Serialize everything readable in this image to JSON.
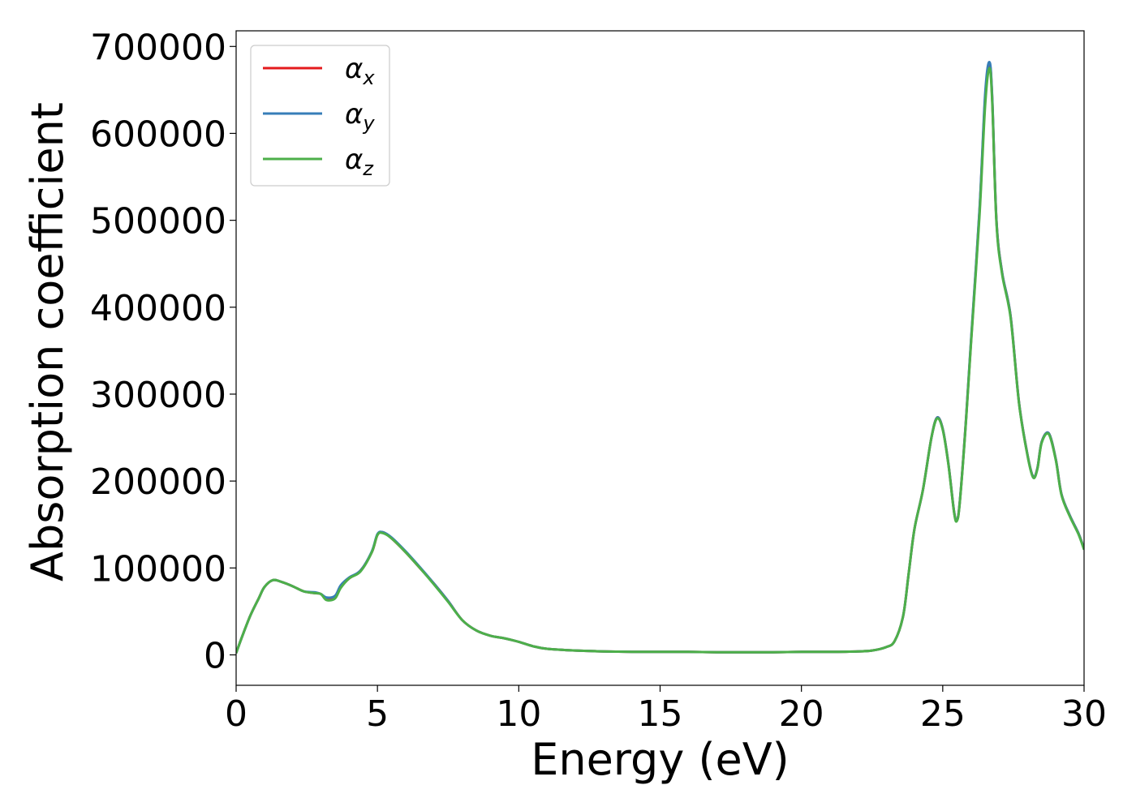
{
  "chart_data": {
    "type": "line",
    "title": "",
    "xlabel": "Energy (eV)",
    "ylabel": "Absorption coefficient",
    "xlim": [
      0,
      30
    ],
    "ylim": [
      -35000,
      718000
    ],
    "xticks": [
      0,
      5,
      10,
      15,
      20,
      25,
      30
    ],
    "yticks": [
      0,
      100000,
      200000,
      300000,
      400000,
      500000,
      600000,
      700000
    ],
    "xtick_labels": [
      "0",
      "5",
      "10",
      "15",
      "20",
      "25",
      "30"
    ],
    "ytick_labels": [
      "0",
      "100000",
      "200000",
      "300000",
      "400000",
      "500000",
      "600000",
      "700000"
    ],
    "grid": false,
    "legend_position": "top-left",
    "series": [
      {
        "name": "α_x",
        "label_main": "α",
        "label_sub": "x",
        "color": "#e41a1c",
        "x": [
          0,
          0.2,
          0.5,
          0.8,
          1.0,
          1.3,
          1.6,
          2.0,
          2.4,
          2.8,
          3.0,
          3.2,
          3.5,
          3.7,
          4.0,
          4.4,
          4.8,
          5.0,
          5.2,
          5.5,
          6.0,
          6.5,
          7.0,
          7.5,
          8.0,
          8.5,
          9.0,
          9.5,
          10.0,
          10.5,
          11.0,
          12.0,
          13.0,
          14.0,
          15.0,
          16.0,
          17.0,
          18.0,
          19.0,
          20.0,
          21.0,
          22.0,
          22.5,
          23.0,
          23.3,
          23.6,
          23.8,
          24.0,
          24.3,
          24.6,
          24.8,
          25.0,
          25.2,
          25.4,
          25.5,
          25.6,
          25.8,
          26.0,
          26.3,
          26.5,
          26.65,
          26.75,
          26.9,
          27.1,
          27.4,
          27.7,
          28.0,
          28.2,
          28.35,
          28.5,
          28.75,
          29.0,
          29.2,
          29.5,
          29.8,
          30.0
        ],
        "values": [
          2000,
          20000,
          45000,
          65000,
          78000,
          86000,
          84000,
          79000,
          73000,
          71000,
          70000,
          64000,
          66000,
          78000,
          88000,
          97000,
          118000,
          138000,
          141000,
          134000,
          118000,
          100000,
          82000,
          62000,
          40000,
          28000,
          22000,
          19000,
          15000,
          10000,
          7000,
          5000,
          4000,
          3500,
          3500,
          3500,
          3000,
          3000,
          3000,
          3500,
          3500,
          4000,
          5000,
          9000,
          16000,
          45000,
          95000,
          145000,
          190000,
          250000,
          273000,
          260000,
          220000,
          165000,
          155000,
          175000,
          260000,
          360000,
          510000,
          640000,
          680000,
          640000,
          500000,
          440000,
          390000,
          290000,
          230000,
          205000,
          215000,
          245000,
          255000,
          225000,
          185000,
          160000,
          140000,
          122000
        ]
      },
      {
        "name": "α_y",
        "label_main": "α",
        "label_sub": "y",
        "color": "#377eb8",
        "x": [
          0,
          0.2,
          0.5,
          0.8,
          1.0,
          1.3,
          1.6,
          2.0,
          2.4,
          2.8,
          3.0,
          3.2,
          3.5,
          3.7,
          4.0,
          4.4,
          4.8,
          5.0,
          5.2,
          5.5,
          6.0,
          6.5,
          7.0,
          7.5,
          8.0,
          8.5,
          9.0,
          9.5,
          10.0,
          10.5,
          11.0,
          12.0,
          13.0,
          14.0,
          15.0,
          16.0,
          17.0,
          18.0,
          19.0,
          20.0,
          21.0,
          22.0,
          22.5,
          23.0,
          23.3,
          23.6,
          23.8,
          24.0,
          24.3,
          24.6,
          24.8,
          25.0,
          25.2,
          25.4,
          25.5,
          25.6,
          25.8,
          26.0,
          26.3,
          26.5,
          26.65,
          26.75,
          26.9,
          27.1,
          27.4,
          27.7,
          28.0,
          28.2,
          28.35,
          28.5,
          28.75,
          29.0,
          29.2,
          29.5,
          29.8,
          30.0
        ],
        "values": [
          2000,
          20000,
          45000,
          65000,
          78000,
          86000,
          84000,
          79000,
          73000,
          72000,
          70000,
          66000,
          68000,
          80000,
          89000,
          97000,
          119000,
          139000,
          141000,
          135000,
          119000,
          101000,
          82000,
          62000,
          40000,
          28000,
          22000,
          19000,
          15000,
          10000,
          7000,
          5000,
          4000,
          3500,
          3500,
          3500,
          3000,
          3000,
          3000,
          3500,
          3500,
          4000,
          5000,
          9000,
          16000,
          45000,
          95000,
          145000,
          190000,
          250000,
          273000,
          260000,
          220000,
          165000,
          155000,
          175000,
          260000,
          362000,
          512000,
          645000,
          682000,
          642000,
          500000,
          440000,
          390000,
          290000,
          230000,
          205000,
          215000,
          245000,
          255000,
          225000,
          185000,
          160000,
          140000,
          122000
        ]
      },
      {
        "name": "α_z",
        "label_main": "α",
        "label_sub": "z",
        "color": "#4daf4a",
        "x": [
          0,
          0.2,
          0.5,
          0.8,
          1.0,
          1.3,
          1.6,
          2.0,
          2.4,
          2.8,
          3.0,
          3.2,
          3.5,
          3.7,
          4.0,
          4.4,
          4.8,
          5.0,
          5.2,
          5.5,
          6.0,
          6.5,
          7.0,
          7.5,
          8.0,
          8.5,
          9.0,
          9.5,
          10.0,
          10.5,
          11.0,
          12.0,
          13.0,
          14.0,
          15.0,
          16.0,
          17.0,
          18.0,
          19.0,
          20.0,
          21.0,
          22.0,
          22.5,
          23.0,
          23.3,
          23.6,
          23.8,
          24.0,
          24.3,
          24.6,
          24.8,
          25.0,
          25.2,
          25.4,
          25.5,
          25.6,
          25.8,
          26.0,
          26.3,
          26.5,
          26.65,
          26.75,
          26.9,
          27.1,
          27.4,
          27.7,
          28.0,
          28.2,
          28.35,
          28.5,
          28.75,
          29.0,
          29.2,
          29.5,
          29.8,
          30.0
        ],
        "values": [
          2000,
          20000,
          45000,
          65000,
          78000,
          86000,
          84000,
          79000,
          73000,
          71000,
          70000,
          63000,
          65000,
          77000,
          88000,
          96000,
          118000,
          138000,
          140000,
          134000,
          118000,
          100000,
          81000,
          61000,
          40000,
          28000,
          22000,
          19000,
          15000,
          10000,
          7000,
          5000,
          4000,
          3500,
          3500,
          3500,
          3000,
          3000,
          3000,
          3500,
          3500,
          4000,
          5000,
          9000,
          16000,
          45000,
          95000,
          145000,
          190000,
          250000,
          272000,
          259000,
          219000,
          164000,
          154000,
          174000,
          258000,
          358000,
          505000,
          632000,
          675000,
          636000,
          497000,
          438000,
          388000,
          289000,
          229000,
          204000,
          214000,
          244000,
          254000,
          224000,
          184000,
          159000,
          139000,
          121000
        ]
      }
    ]
  }
}
